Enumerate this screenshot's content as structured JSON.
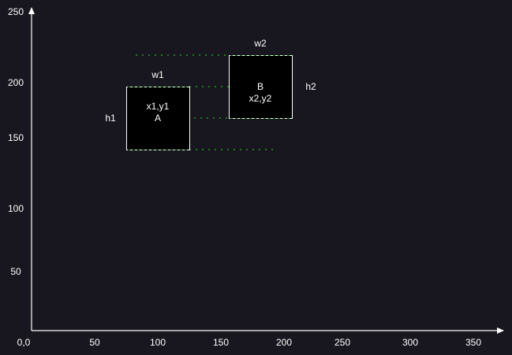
{
  "colors": {
    "background": "#18161e",
    "axis": "#ffffff",
    "box_fill": "#000000",
    "box_stroke": "#ffffff",
    "guide": "#1f7a1f",
    "text": "#ffffff"
  },
  "axes": {
    "origin_label": "0,0",
    "x_ticks": [
      "50",
      "100",
      "150",
      "200",
      "250",
      "300",
      "350"
    ],
    "y_ticks": [
      "250",
      "200",
      "150",
      "100",
      "50"
    ]
  },
  "rect_a": {
    "label": "A",
    "coord_label": "x1,y1",
    "width_label": "w1",
    "height_label": "h1"
  },
  "rect_b": {
    "label": "B",
    "coord_label": "x2,y2",
    "width_label": "w2",
    "height_label": "h2"
  }
}
